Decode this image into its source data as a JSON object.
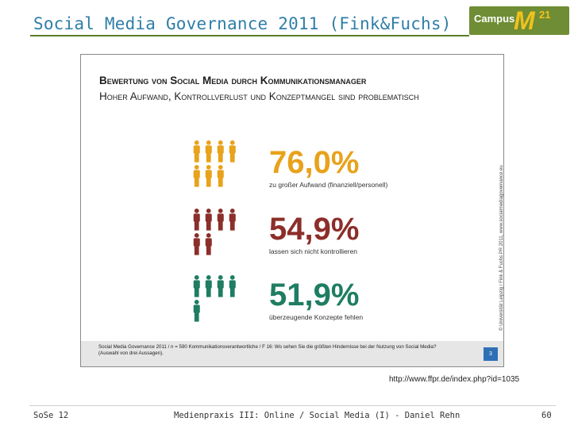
{
  "slide": {
    "title": "Social Media Governance 2011 (Fink&Fuchs)",
    "logo": {
      "word": "Campus",
      "letter": "M",
      "number": "21"
    },
    "url": "http://www.ffpr.de/index.php?id=1035"
  },
  "graphic": {
    "heading1": "Bewertung von Social Media durch Kommunikationsmanager",
    "heading2": "Hoher Aufwand, Kontrollverlust und Konzeptmangel sind problematisch",
    "stats": [
      {
        "value": "76,0%",
        "label": "zu großer Aufwand (finanziell/personell)",
        "color": "#e8a21b"
      },
      {
        "value": "54,9%",
        "label": "lassen sich nicht kontrollieren",
        "color": "#8c2e2a"
      },
      {
        "value": "51,9%",
        "label": "überzeugende Konzepte fehlen",
        "color": "#1f7d62"
      }
    ],
    "side_credit": "© Universität Leipzig / Fink & Fuchs PR 2011, www.socialmediagovernance.eu",
    "source_note": "Social Media Governance 2011 / n = 590 Kommunikationsverantwortliche / F 16: Wo sehen Sie die größten Hindernisse bei der Nutzung von Social Media? (Auswahl von drei Aussagen).",
    "page_badge": "3"
  },
  "footer": {
    "left": "SoSe 12",
    "center": "Medienpraxis III: Online / Social Media (I) - Daniel Rehn",
    "page": "60"
  }
}
